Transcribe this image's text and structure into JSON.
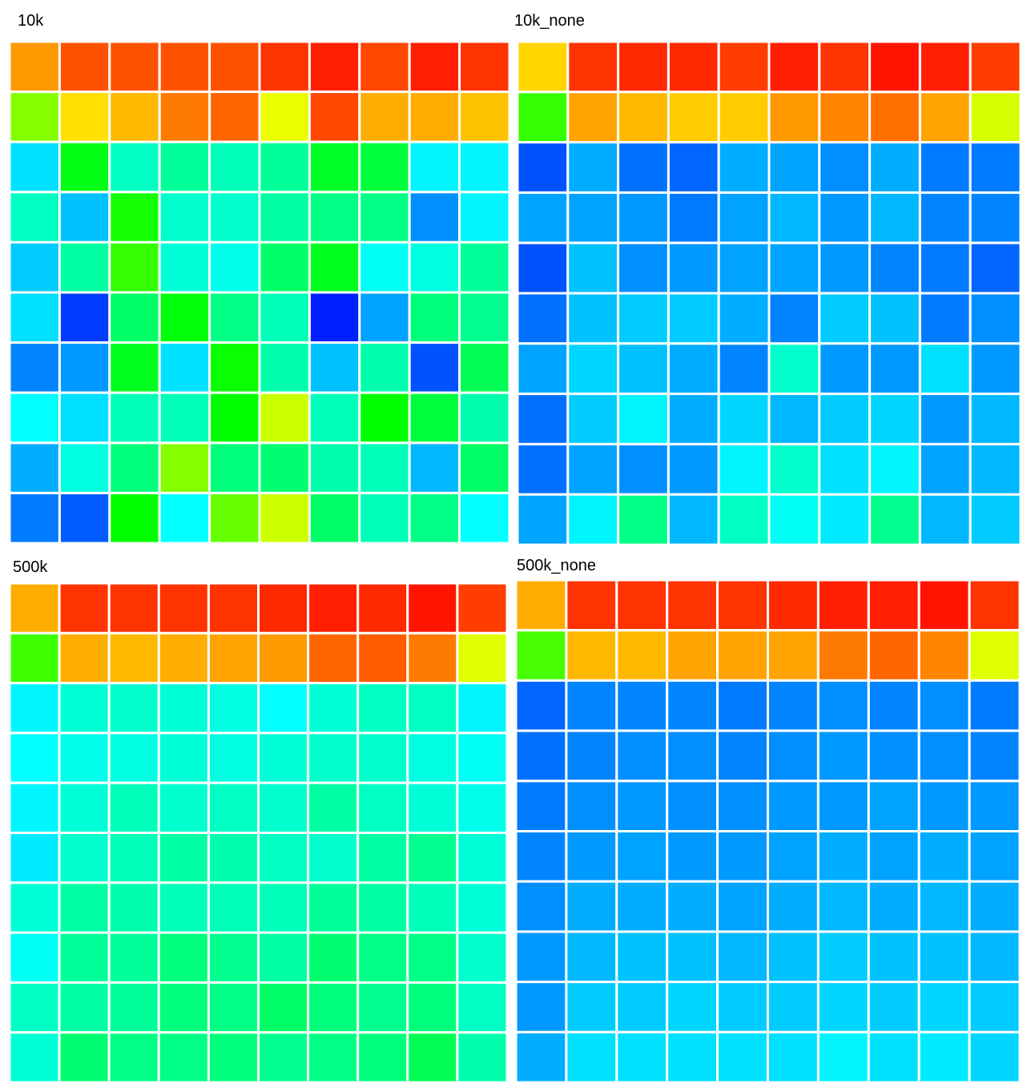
{
  "chart_data": [
    {
      "type": "heatmap",
      "title": "10k",
      "colormap": "rainbow",
      "vlim": [
        0,
        1
      ],
      "values": [
        [
          0.85,
          0.92,
          0.92,
          0.92,
          0.92,
          0.95,
          0.97,
          0.93,
          0.97,
          0.95
        ],
        [
          0.63,
          0.78,
          0.82,
          0.88,
          0.9,
          0.73,
          0.93,
          0.83,
          0.83,
          0.81
        ],
        [
          0.22,
          0.48,
          0.31,
          0.35,
          0.32,
          0.35,
          0.46,
          0.44,
          0.24,
          0.24
        ],
        [
          0.31,
          0.19,
          0.52,
          0.3,
          0.3,
          0.34,
          0.37,
          0.37,
          0.14,
          0.24
        ],
        [
          0.2,
          0.34,
          0.55,
          0.29,
          0.27,
          0.4,
          0.47,
          0.26,
          0.28,
          0.35
        ],
        [
          0.22,
          0.06,
          0.4,
          0.49,
          0.37,
          0.32,
          0.03,
          0.16,
          0.38,
          0.36
        ],
        [
          0.13,
          0.15,
          0.47,
          0.22,
          0.51,
          0.33,
          0.19,
          0.33,
          0.08,
          0.42
        ],
        [
          0.25,
          0.22,
          0.32,
          0.32,
          0.5,
          0.7,
          0.32,
          0.5,
          0.44,
          0.33
        ],
        [
          0.17,
          0.28,
          0.38,
          0.63,
          0.38,
          0.39,
          0.33,
          0.32,
          0.18,
          0.4
        ],
        [
          0.12,
          0.09,
          0.5,
          0.25,
          0.6,
          0.7,
          0.4,
          0.32,
          0.37,
          0.25
        ]
      ]
    },
    {
      "type": "heatmap",
      "title": "10k_none",
      "colormap": "rainbow",
      "vlim": [
        0,
        1
      ],
      "values": [
        [
          0.79,
          0.95,
          0.96,
          0.96,
          0.94,
          0.97,
          0.95,
          0.98,
          0.97,
          0.94
        ],
        [
          0.55,
          0.84,
          0.82,
          0.8,
          0.8,
          0.85,
          0.87,
          0.89,
          0.84,
          0.71
        ],
        [
          0.08,
          0.17,
          0.11,
          0.1,
          0.17,
          0.16,
          0.14,
          0.17,
          0.12,
          0.12
        ],
        [
          0.16,
          0.16,
          0.15,
          0.12,
          0.16,
          0.18,
          0.15,
          0.18,
          0.13,
          0.13
        ],
        [
          0.08,
          0.19,
          0.14,
          0.15,
          0.16,
          0.16,
          0.15,
          0.13,
          0.12,
          0.1
        ],
        [
          0.11,
          0.19,
          0.2,
          0.2,
          0.17,
          0.13,
          0.2,
          0.19,
          0.12,
          0.14
        ],
        [
          0.16,
          0.21,
          0.19,
          0.17,
          0.13,
          0.3,
          0.15,
          0.15,
          0.22,
          0.15
        ],
        [
          0.11,
          0.2,
          0.24,
          0.17,
          0.21,
          0.18,
          0.2,
          0.21,
          0.15,
          0.18
        ],
        [
          0.11,
          0.16,
          0.14,
          0.15,
          0.24,
          0.3,
          0.22,
          0.24,
          0.16,
          0.18
        ],
        [
          0.16,
          0.24,
          0.37,
          0.18,
          0.31,
          0.26,
          0.23,
          0.36,
          0.18,
          0.2
        ]
      ]
    },
    {
      "type": "heatmap",
      "title": "500k",
      "colormap": "rainbow",
      "vlim": [
        0,
        1
      ],
      "values": [
        [
          0.83,
          0.95,
          0.95,
          0.95,
          0.95,
          0.96,
          0.97,
          0.96,
          0.98,
          0.94
        ],
        [
          0.56,
          0.83,
          0.82,
          0.83,
          0.84,
          0.85,
          0.9,
          0.91,
          0.88,
          0.72
        ],
        [
          0.24,
          0.29,
          0.3,
          0.29,
          0.28,
          0.25,
          0.29,
          0.31,
          0.31,
          0.24
        ],
        [
          0.25,
          0.27,
          0.28,
          0.29,
          0.28,
          0.29,
          0.3,
          0.3,
          0.28,
          0.26
        ],
        [
          0.24,
          0.29,
          0.32,
          0.3,
          0.31,
          0.3,
          0.34,
          0.31,
          0.29,
          0.27
        ],
        [
          0.23,
          0.3,
          0.32,
          0.34,
          0.33,
          0.31,
          0.3,
          0.34,
          0.36,
          0.29
        ],
        [
          0.29,
          0.34,
          0.33,
          0.32,
          0.32,
          0.32,
          0.35,
          0.34,
          0.32,
          0.29
        ],
        [
          0.26,
          0.35,
          0.35,
          0.38,
          0.36,
          0.34,
          0.39,
          0.37,
          0.37,
          0.3
        ],
        [
          0.31,
          0.34,
          0.35,
          0.38,
          0.37,
          0.4,
          0.38,
          0.36,
          0.38,
          0.31
        ],
        [
          0.29,
          0.39,
          0.37,
          0.37,
          0.38,
          0.36,
          0.37,
          0.38,
          0.42,
          0.33
        ]
      ]
    },
    {
      "type": "heatmap",
      "title": "500k_none",
      "colormap": "rainbow",
      "vlim": [
        0,
        1
      ],
      "values": [
        [
          0.83,
          0.95,
          0.95,
          0.95,
          0.95,
          0.96,
          0.97,
          0.97,
          0.98,
          0.95
        ],
        [
          0.57,
          0.82,
          0.82,
          0.84,
          0.84,
          0.84,
          0.88,
          0.9,
          0.87,
          0.72
        ],
        [
          0.1,
          0.13,
          0.13,
          0.13,
          0.12,
          0.13,
          0.14,
          0.13,
          0.14,
          0.12
        ],
        [
          0.11,
          0.13,
          0.14,
          0.14,
          0.13,
          0.14,
          0.15,
          0.14,
          0.14,
          0.13
        ],
        [
          0.12,
          0.14,
          0.15,
          0.14,
          0.14,
          0.15,
          0.15,
          0.16,
          0.15,
          0.15
        ],
        [
          0.13,
          0.15,
          0.16,
          0.15,
          0.15,
          0.16,
          0.17,
          0.16,
          0.17,
          0.16
        ],
        [
          0.14,
          0.17,
          0.17,
          0.17,
          0.16,
          0.17,
          0.18,
          0.17,
          0.18,
          0.17
        ],
        [
          0.15,
          0.18,
          0.19,
          0.19,
          0.18,
          0.19,
          0.2,
          0.19,
          0.19,
          0.18
        ],
        [
          0.15,
          0.2,
          0.2,
          0.21,
          0.2,
          0.2,
          0.21,
          0.2,
          0.21,
          0.2
        ],
        [
          0.17,
          0.22,
          0.22,
          0.22,
          0.22,
          0.22,
          0.24,
          0.22,
          0.23,
          0.21
        ]
      ]
    }
  ]
}
